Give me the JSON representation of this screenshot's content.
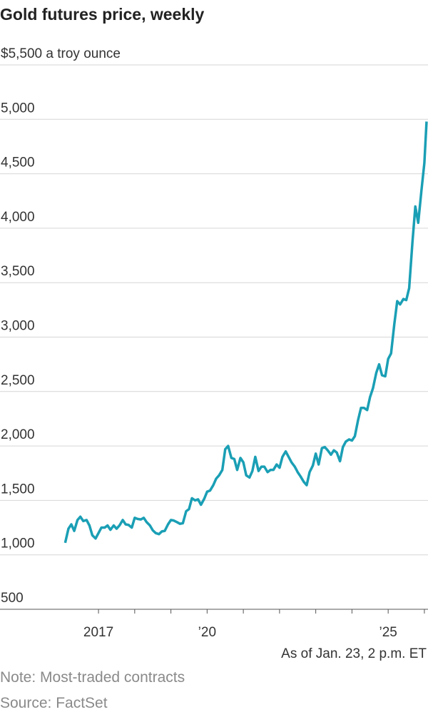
{
  "chart_data": {
    "type": "line",
    "title": "Gold futures price, weekly",
    "note": "Note: Most-traded contracts",
    "source": "Source: FactSet",
    "annotation": "As of Jan. 23, 2 p.m. ET",
    "color": "#1a9fb5",
    "grid": true,
    "xlim": [
      2014.28,
      2026.1
    ],
    "xticks": [
      {
        "value": 2017,
        "label": "2017"
      },
      {
        "value": 2020,
        "label": "’20"
      },
      {
        "value": 2025,
        "label": "’25"
      }
    ],
    "xminorticks": [
      2018,
      2019,
      2021,
      2022,
      2023,
      2024,
      2026
    ],
    "ylim": [
      500,
      5500
    ],
    "yticks": [
      {
        "value": 500,
        "label": "500"
      },
      {
        "value": 1000,
        "label": "1,000"
      },
      {
        "value": 1500,
        "label": "1,500"
      },
      {
        "value": 2000,
        "label": "2,000"
      },
      {
        "value": 2500,
        "label": "2,500"
      },
      {
        "value": 3000,
        "label": "3,000"
      },
      {
        "value": 3500,
        "label": "3,500"
      },
      {
        "value": 4000,
        "label": "4,000"
      },
      {
        "value": 4500,
        "label": "4,500"
      },
      {
        "value": 5000,
        "label": "5,000"
      },
      {
        "value": 5500,
        "label": "$5,500 a troy ounce"
      }
    ],
    "x": [
      2016.08,
      2016.17,
      2016.25,
      2016.33,
      2016.42,
      2016.5,
      2016.58,
      2016.67,
      2016.75,
      2016.83,
      2016.92,
      2017.0,
      2017.08,
      2017.17,
      2017.25,
      2017.33,
      2017.42,
      2017.5,
      2017.58,
      2017.67,
      2017.75,
      2017.83,
      2017.92,
      2018.0,
      2018.08,
      2018.17,
      2018.25,
      2018.33,
      2018.42,
      2018.5,
      2018.58,
      2018.67,
      2018.75,
      2018.83,
      2018.92,
      2019.0,
      2019.08,
      2019.17,
      2019.25,
      2019.33,
      2019.42,
      2019.5,
      2019.58,
      2019.67,
      2019.75,
      2019.83,
      2019.92,
      2020.0,
      2020.08,
      2020.17,
      2020.25,
      2020.33,
      2020.42,
      2020.5,
      2020.58,
      2020.67,
      2020.75,
      2020.83,
      2020.92,
      2021.0,
      2021.08,
      2021.17,
      2021.25,
      2021.33,
      2021.42,
      2021.5,
      2021.58,
      2021.67,
      2021.75,
      2021.83,
      2021.92,
      2022.0,
      2022.08,
      2022.17,
      2022.25,
      2022.33,
      2022.42,
      2022.5,
      2022.58,
      2022.67,
      2022.75,
      2022.83,
      2022.92,
      2023.0,
      2023.08,
      2023.17,
      2023.25,
      2023.33,
      2023.42,
      2023.5,
      2023.58,
      2023.67,
      2023.75,
      2023.83,
      2023.92,
      2024.0,
      2024.08,
      2024.17,
      2024.25,
      2024.33,
      2024.42,
      2024.5,
      2024.58,
      2024.67,
      2024.75,
      2024.83,
      2024.92,
      2025.0,
      2025.08,
      2025.17,
      2025.25,
      2025.33,
      2025.42,
      2025.5,
      2025.58,
      2025.67,
      2025.75,
      2025.83,
      2025.92,
      2026.0,
      2026.06
    ],
    "values": [
      1110,
      1240,
      1280,
      1220,
      1320,
      1350,
      1310,
      1320,
      1270,
      1180,
      1150,
      1200,
      1250,
      1250,
      1270,
      1230,
      1270,
      1240,
      1270,
      1320,
      1280,
      1275,
      1250,
      1340,
      1330,
      1325,
      1340,
      1300,
      1270,
      1225,
      1200,
      1190,
      1215,
      1220,
      1280,
      1320,
      1315,
      1300,
      1285,
      1290,
      1400,
      1420,
      1520,
      1500,
      1510,
      1460,
      1515,
      1580,
      1590,
      1640,
      1700,
      1730,
      1780,
      1970,
      2000,
      1890,
      1880,
      1780,
      1890,
      1850,
      1730,
      1710,
      1770,
      1900,
      1770,
      1810,
      1810,
      1760,
      1780,
      1780,
      1830,
      1800,
      1900,
      1950,
      1900,
      1850,
      1810,
      1760,
      1720,
      1670,
      1640,
      1760,
      1820,
      1930,
      1830,
      1980,
      1990,
      1960,
      1920,
      1960,
      1940,
      1860,
      1990,
      2040,
      2060,
      2050,
      2090,
      2240,
      2350,
      2350,
      2330,
      2450,
      2530,
      2670,
      2750,
      2650,
      2640,
      2800,
      2850,
      3120,
      3330,
      3300,
      3350,
      3340,
      3450,
      3870,
      4200,
      4050,
      4350,
      4600,
      4980
    ]
  }
}
